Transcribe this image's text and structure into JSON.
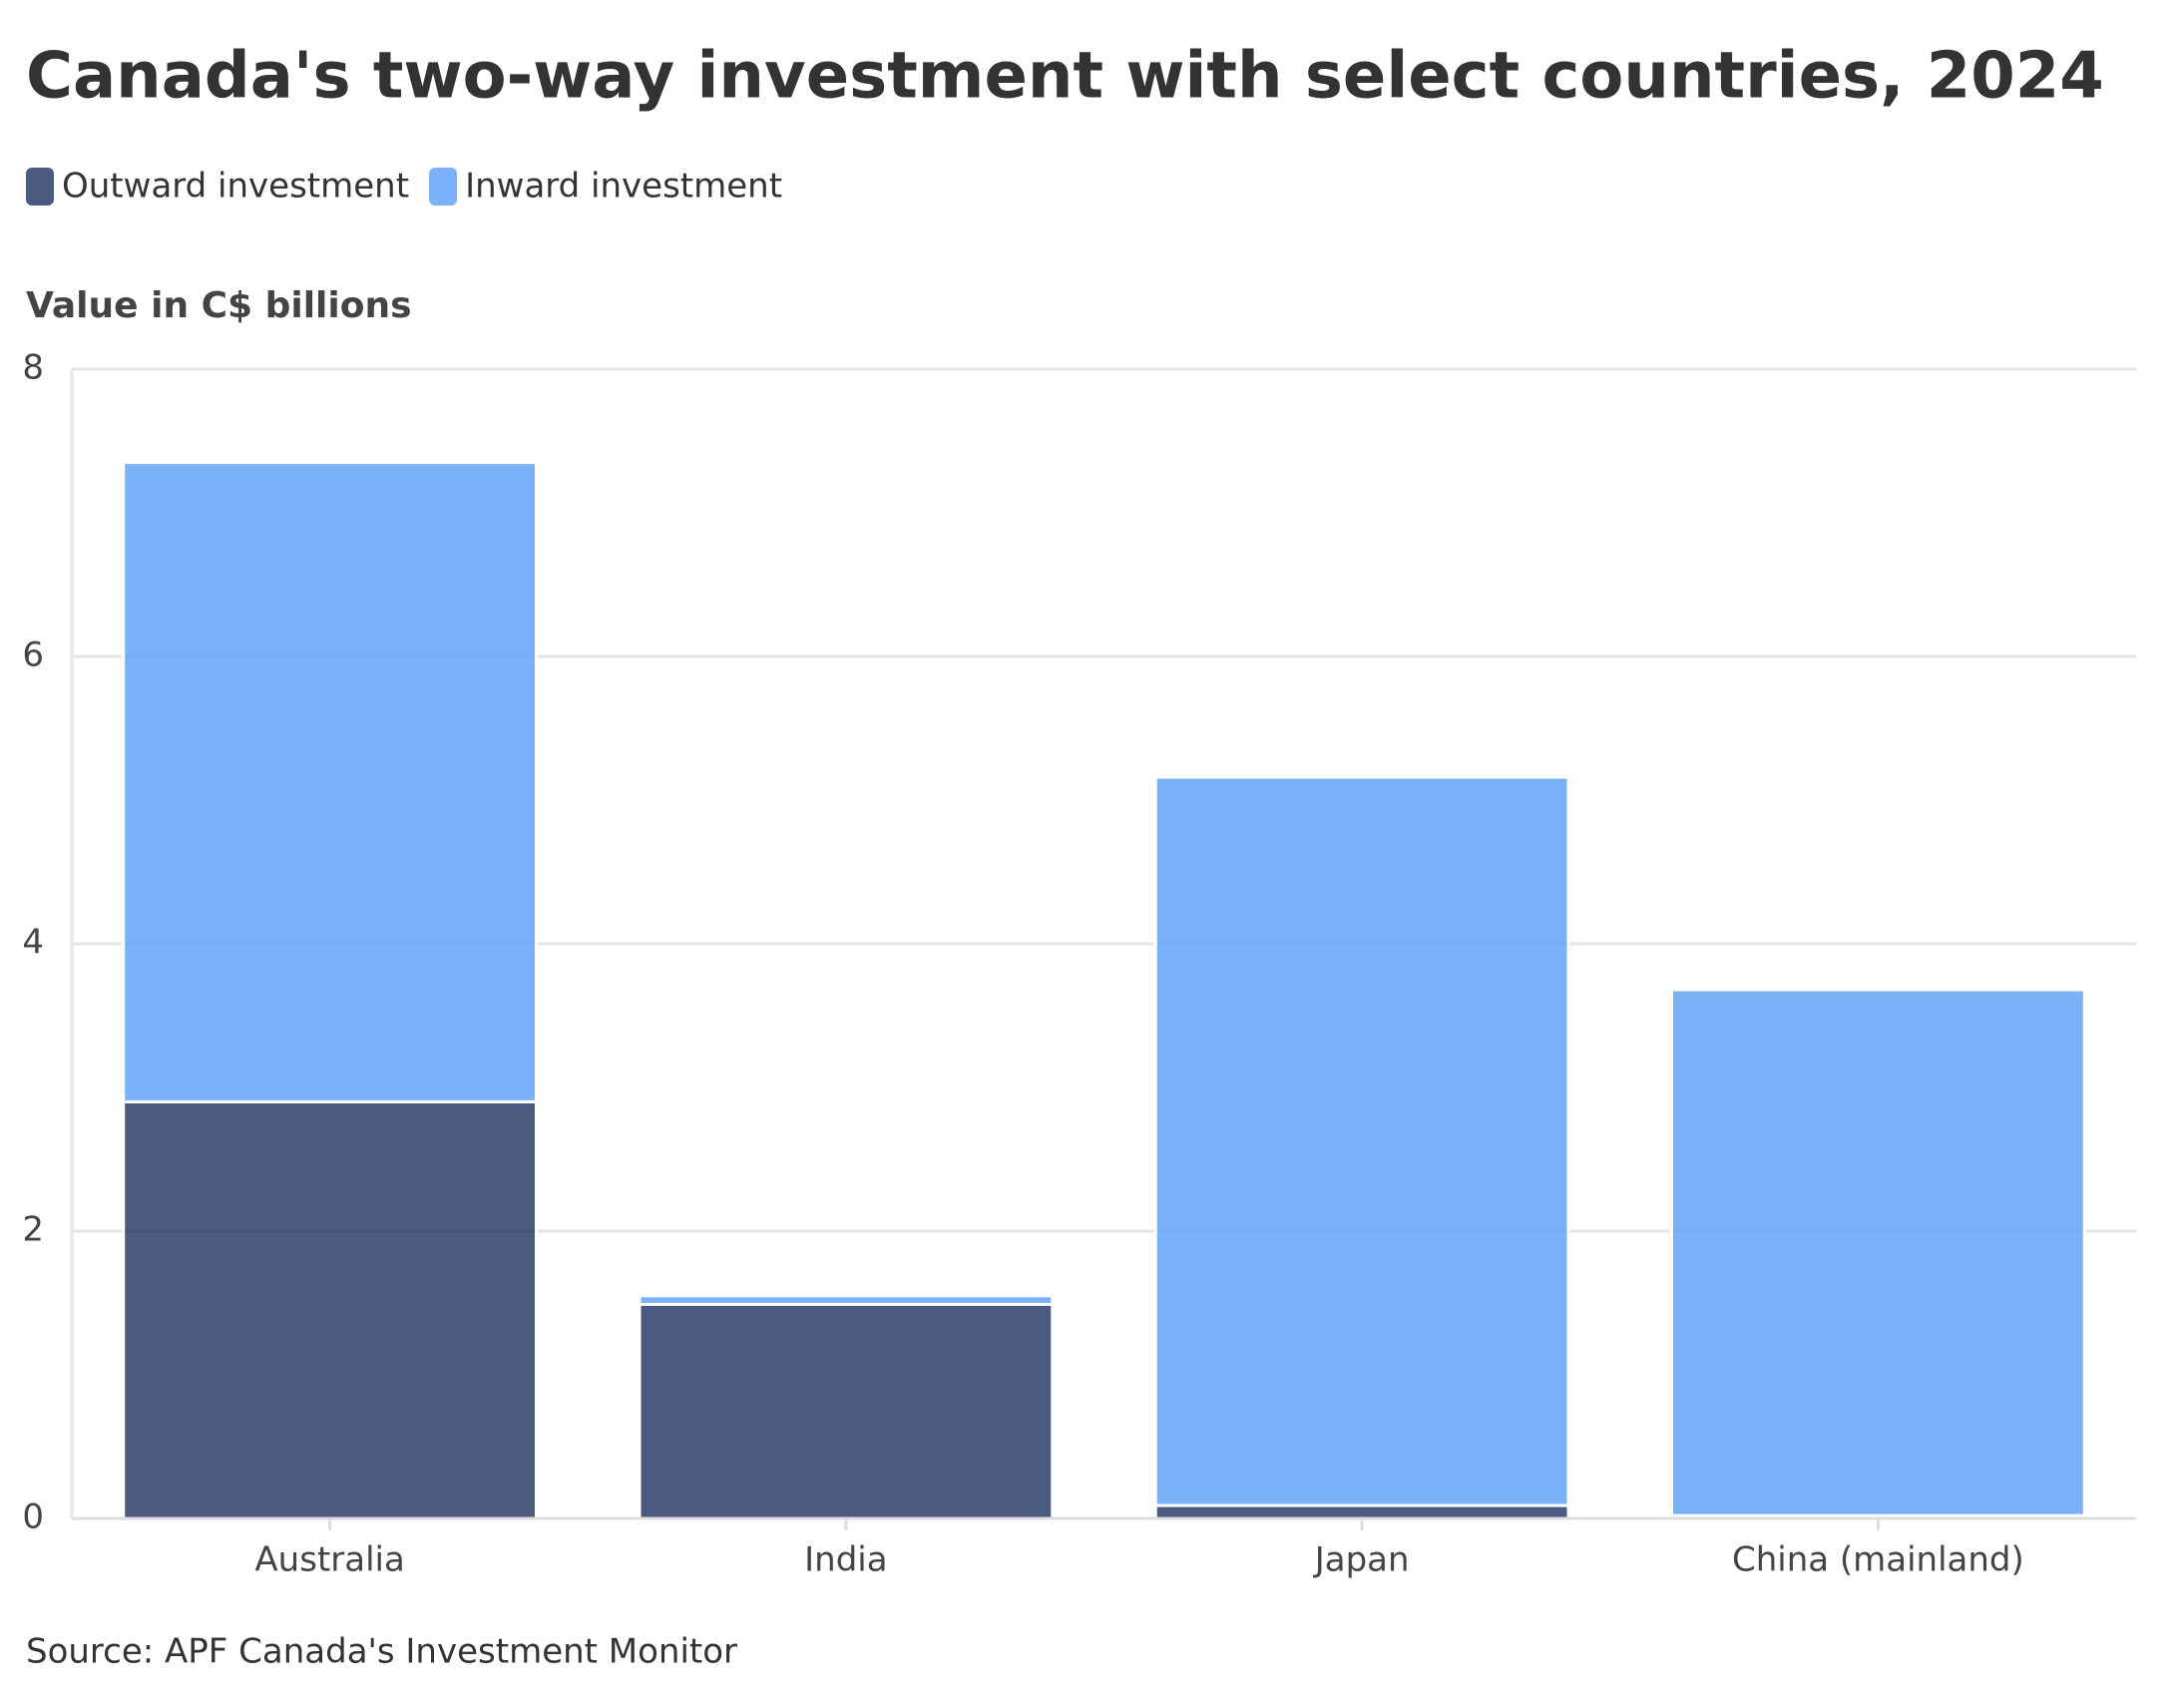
{
  "chart_data": {
    "type": "bar",
    "stacked": true,
    "title": "Canada's two-way investment with select countries, 2024",
    "y_label": "Value in C$ billions",
    "source": "Source: APF Canada's Investment Monitor",
    "categories": [
      "Australia",
      "India",
      "Japan",
      "China (mainland)"
    ],
    "series": [
      {
        "name": "Outward investment",
        "color": "#1e3160",
        "values": [
          2.9,
          1.49,
          0.09,
          0.02
        ]
      },
      {
        "name": "Inward investment",
        "color": "#5a9df6",
        "values": [
          4.45,
          0.06,
          5.07,
          3.66
        ]
      }
    ],
    "ylim": [
      0,
      8
    ],
    "yticks": [
      0,
      2,
      4,
      6,
      8
    ],
    "grid": true
  }
}
